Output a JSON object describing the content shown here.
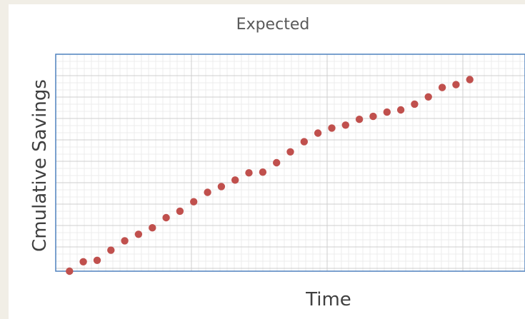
{
  "chart_data": {
    "type": "scatter",
    "title": "Expected",
    "xlabel": "Time",
    "ylabel": "Cmulative Savings",
    "x": [
      1,
      2,
      3,
      4,
      5,
      6,
      7,
      8,
      9,
      10,
      11,
      12,
      13,
      14,
      15,
      16,
      17,
      18,
      19,
      20,
      21,
      22,
      23,
      24,
      25,
      26,
      27,
      28,
      29,
      30
    ],
    "y": [
      0,
      13,
      15,
      29,
      42,
      51,
      60,
      74,
      83,
      96,
      109,
      117,
      126,
      136,
      137,
      150,
      165,
      179,
      191,
      198,
      202,
      210,
      214,
      220,
      223,
      231,
      241,
      254,
      258,
      265
    ],
    "xlim": [
      0,
      34
    ],
    "ylim": [
      0,
      300
    ],
    "grid": true,
    "legend": "none",
    "marker_color": "#c0504d",
    "frame_color": "#4f81bd",
    "grid_major_color": "#cfcfcf",
    "grid_minor_color": "#ececec"
  }
}
